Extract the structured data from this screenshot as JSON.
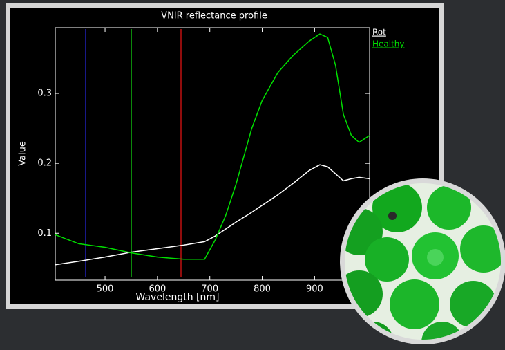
{
  "chart_data": {
    "type": "line",
    "title": "VNIR reflectance profile",
    "x_label": "Wavelength [nm]",
    "y_label": "Value",
    "x": [
      405,
      450,
      500,
      550,
      600,
      650,
      690,
      710,
      730,
      750,
      780,
      800,
      830,
      860,
      890,
      910,
      925,
      940,
      955,
      970,
      985,
      1005
    ],
    "series": [
      {
        "name": "Rot",
        "color": "#ffffff",
        "values": [
          0.055,
          0.06,
          0.066,
          0.073,
          0.078,
          0.083,
          0.088,
          0.096,
          0.106,
          0.116,
          0.13,
          0.14,
          0.155,
          0.172,
          0.19,
          0.198,
          0.195,
          0.185,
          0.175,
          0.178,
          0.18,
          0.178
        ]
      },
      {
        "name": "Healthy",
        "color": "#00e000",
        "values": [
          0.098,
          0.085,
          0.08,
          0.072,
          0.066,
          0.063,
          0.063,
          0.09,
          0.125,
          0.17,
          0.25,
          0.29,
          0.33,
          0.355,
          0.375,
          0.385,
          0.38,
          0.34,
          0.27,
          0.24,
          0.23,
          0.24
        ]
      }
    ],
    "band_lines": [
      {
        "x": 463,
        "color": "#2020b0"
      },
      {
        "x": 550,
        "color": "#10c010"
      },
      {
        "x": 645,
        "color": "#c01010"
      }
    ],
    "xlim": [
      405,
      1005
    ],
    "ylim": [
      0.033,
      0.394
    ],
    "xticks": [
      500,
      600,
      700,
      800,
      900
    ],
    "yticks": [
      0.1,
      0.2,
      0.3
    ],
    "legend": "right"
  }
}
